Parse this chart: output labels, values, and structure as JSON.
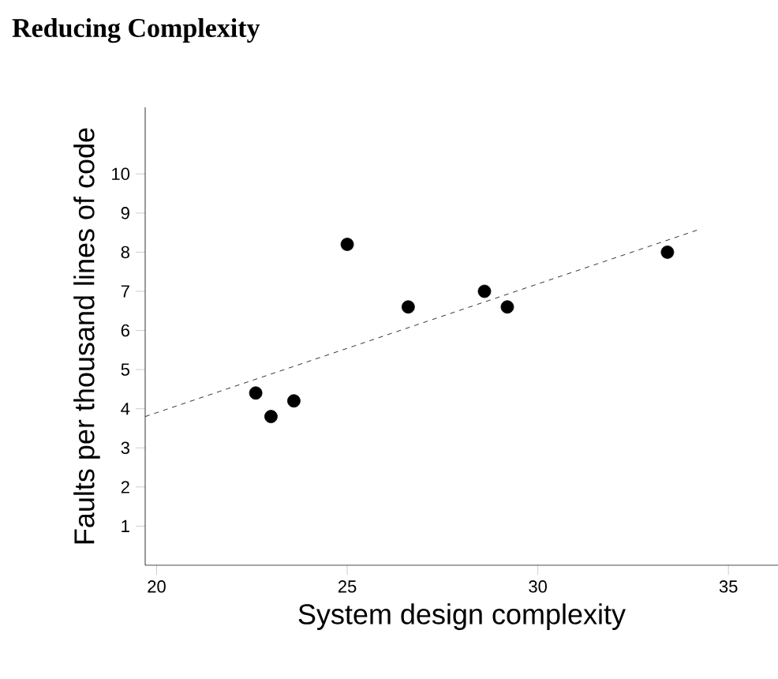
{
  "chart_data": {
    "type": "scatter",
    "title": "Reducing Complexity",
    "xlabel": "System design complexity",
    "ylabel": "Faults per thousand lines of code",
    "xlim": [
      19.7,
      36.3
    ],
    "ylim": [
      0,
      11.7
    ],
    "xticks": [
      20,
      25,
      30,
      35
    ],
    "yticks": [
      1,
      2,
      3,
      4,
      5,
      6,
      7,
      8,
      9,
      10
    ],
    "series": [
      {
        "color": "#000000",
        "marker": "circle",
        "x": [
          22.6,
          23.0,
          23.6,
          25.0,
          26.6,
          28.6,
          29.2,
          33.4
        ],
        "values": [
          4.4,
          3.8,
          4.2,
          8.2,
          6.6,
          7.0,
          6.6,
          8.0
        ]
      },
      {
        "type": "line",
        "color": "#000000",
        "line_style": "dashed",
        "marker": "none",
        "x": [
          19.7,
          34.2
        ],
        "values": [
          3.8,
          8.57
        ]
      }
    ]
  }
}
